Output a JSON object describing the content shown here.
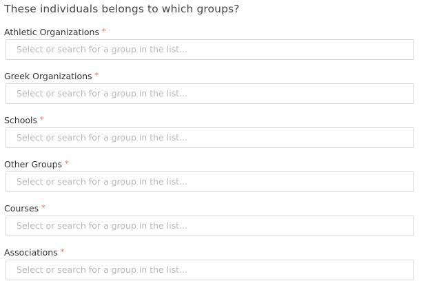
{
  "title": "These individuals belongs to which groups?",
  "required_marker": "*",
  "fields": [
    {
      "label": "Athletic Organizations",
      "placeholder": "Select or search for a group in the list...",
      "value": ""
    },
    {
      "label": "Greek Organizations",
      "placeholder": "Select or search for a group in the list...",
      "value": ""
    },
    {
      "label": "Schools",
      "placeholder": "Select or search for a group in the list...",
      "value": ""
    },
    {
      "label": "Other Groups",
      "placeholder": "Select or search for a group in the list...",
      "value": ""
    },
    {
      "label": "Courses",
      "placeholder": "Select or search for a group in the list...",
      "value": ""
    },
    {
      "label": "Associations",
      "placeholder": "Select or search for a group in the list...",
      "value": ""
    }
  ]
}
